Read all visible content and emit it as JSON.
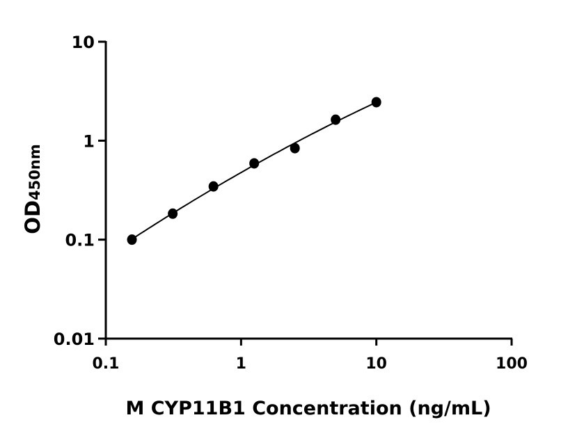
{
  "chart_data": {
    "type": "scatter",
    "title": "",
    "xlabel": "M CYP11B1 Concentration (ng/mL)",
    "ylabel": "OD",
    "ylabel_subscript": "450nm",
    "x_scale": "log",
    "y_scale": "log",
    "xlim": [
      0.1,
      100
    ],
    "ylim": [
      0.01,
      10
    ],
    "x_ticks": [
      "0.1",
      "1",
      "10",
      "100"
    ],
    "y_ticks": [
      "0.01",
      "0.1",
      "1",
      "10"
    ],
    "grid": false,
    "fit_curve": true,
    "marker_color": "#000000",
    "series": [
      {
        "x": [
          0.156,
          0.3125,
          0.625,
          1.25,
          2.5,
          5,
          10
        ],
        "y": [
          0.1,
          0.183,
          0.345,
          0.59,
          0.84,
          1.63,
          2.45
        ]
      }
    ]
  }
}
